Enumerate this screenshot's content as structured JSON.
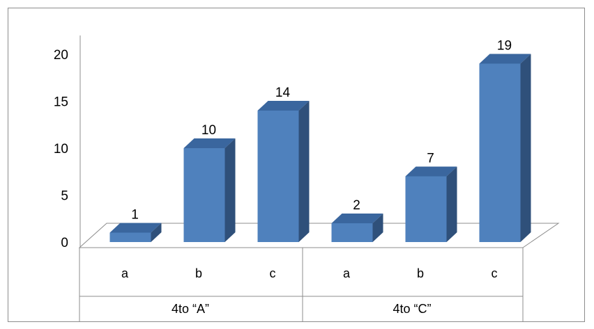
{
  "chart_data": {
    "type": "bar",
    "style": "3d-clustered-column",
    "groups": [
      {
        "label": "4to “A”",
        "categories": [
          "a",
          "b",
          "c"
        ],
        "values": [
          1,
          10,
          14
        ]
      },
      {
        "label": "4to “C”",
        "categories": [
          "a",
          "b",
          "c"
        ],
        "values": [
          2,
          7,
          19
        ]
      }
    ],
    "data_labels": true,
    "ylim": [
      0,
      20
    ],
    "yticks": [
      0,
      5,
      10,
      15,
      20
    ],
    "grid": false,
    "legend": "none",
    "colors": {
      "front": "#4f81bd",
      "top": "#3a669e",
      "side": "#2f507a"
    }
  }
}
